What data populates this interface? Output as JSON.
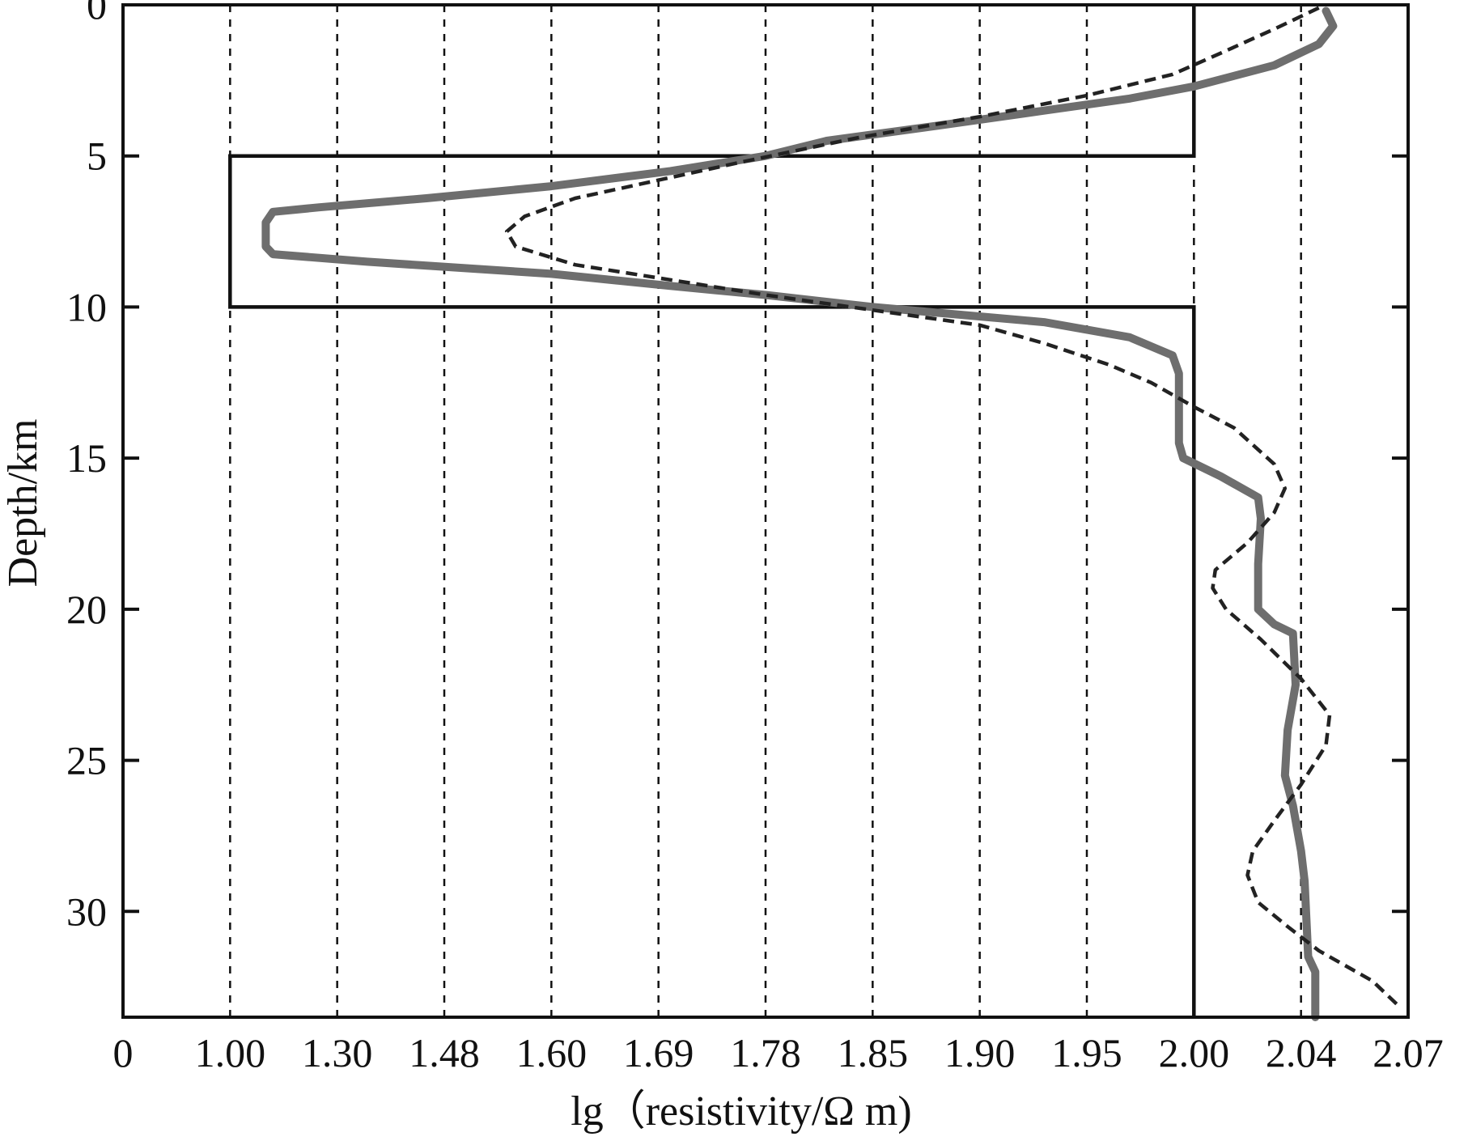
{
  "chart_data": {
    "type": "line",
    "xlabel": "lg（resistivity/Ω m)",
    "ylabel": "Depth/km",
    "x_tick_labels": [
      "0",
      "1.00",
      "1.30",
      "1.48",
      "1.60",
      "1.69",
      "1.78",
      "1.85",
      "1.90",
      "1.95",
      "2.00",
      "2.04",
      "2.07"
    ],
    "y_ticks": [
      0,
      5,
      10,
      15,
      20,
      25,
      30
    ],
    "y_tick_labels": [
      "0",
      "5",
      "10",
      "15",
      "20",
      "25",
      "30"
    ],
    "ylim": [
      0,
      33.5
    ],
    "y_inverted": true,
    "grid": "vertical dashed lines at each x tick",
    "series": [
      {
        "style": "solid-black-thin",
        "color": "#111111",
        "points": [
          [
            2.0,
            0
          ],
          [
            2.0,
            5
          ],
          [
            1.0,
            5
          ],
          [
            1.0,
            10
          ],
          [
            2.0,
            10
          ],
          [
            2.0,
            33.5
          ]
        ]
      },
      {
        "style": "solid-gray-thick",
        "color": "#6e6e6e",
        "points": [
          [
            2.047,
            0.2
          ],
          [
            2.049,
            0.7
          ],
          [
            2.045,
            1.3
          ],
          [
            2.03,
            2.0
          ],
          [
            2.0,
            2.7
          ],
          [
            1.97,
            3.1
          ],
          [
            1.93,
            3.5
          ],
          [
            1.88,
            4.0
          ],
          [
            1.82,
            4.5
          ],
          [
            1.78,
            5.0
          ],
          [
            1.7,
            5.5
          ],
          [
            1.6,
            6.0
          ],
          [
            1.45,
            6.4
          ],
          [
            1.25,
            6.7
          ],
          [
            1.12,
            6.85
          ],
          [
            1.1,
            7.2
          ],
          [
            1.1,
            8.0
          ],
          [
            1.12,
            8.25
          ],
          [
            1.35,
            8.5
          ],
          [
            1.6,
            8.9
          ],
          [
            1.7,
            9.3
          ],
          [
            1.78,
            9.6
          ],
          [
            1.85,
            10.0
          ],
          [
            1.93,
            10.5
          ],
          [
            1.97,
            11.0
          ],
          [
            1.99,
            11.6
          ],
          [
            1.993,
            12.2
          ],
          [
            1.993,
            14.5
          ],
          [
            1.995,
            15.0
          ],
          [
            2.01,
            15.6
          ],
          [
            2.024,
            16.3
          ],
          [
            2.025,
            17.0
          ],
          [
            2.024,
            18.5
          ],
          [
            2.024,
            20.0
          ],
          [
            2.03,
            20.5
          ],
          [
            2.037,
            20.8
          ],
          [
            2.038,
            22.5
          ],
          [
            2.035,
            24.0
          ],
          [
            2.034,
            25.5
          ],
          [
            2.037,
            26.5
          ],
          [
            2.04,
            28.0
          ],
          [
            2.041,
            29.0
          ],
          [
            2.042,
            31.5
          ],
          [
            2.044,
            32.0
          ],
          [
            2.044,
            33.5
          ]
        ]
      },
      {
        "style": "dashed-black",
        "color": "#222222",
        "points": [
          [
            2.045,
            0.1
          ],
          [
            2.03,
            0.8
          ],
          [
            2.01,
            1.6
          ],
          [
            1.99,
            2.3
          ],
          [
            1.95,
            3.0
          ],
          [
            1.9,
            3.7
          ],
          [
            1.84,
            4.4
          ],
          [
            1.76,
            5.2
          ],
          [
            1.69,
            5.8
          ],
          [
            1.62,
            6.4
          ],
          [
            1.57,
            7.0
          ],
          [
            1.55,
            7.5
          ],
          [
            1.56,
            8.0
          ],
          [
            1.62,
            8.6
          ],
          [
            1.7,
            9.1
          ],
          [
            1.78,
            9.6
          ],
          [
            1.85,
            10.1
          ],
          [
            1.9,
            10.6
          ],
          [
            1.93,
            11.2
          ],
          [
            1.96,
            11.9
          ],
          [
            1.98,
            12.5
          ],
          [
            2.0,
            13.3
          ],
          [
            2.015,
            14.0
          ],
          [
            2.03,
            15.2
          ],
          [
            2.034,
            16.0
          ],
          [
            2.03,
            16.8
          ],
          [
            2.02,
            17.8
          ],
          [
            2.008,
            18.7
          ],
          [
            2.007,
            19.3
          ],
          [
            2.012,
            20.0
          ],
          [
            2.025,
            21.0
          ],
          [
            2.04,
            22.3
          ],
          [
            2.048,
            23.5
          ],
          [
            2.047,
            24.5
          ],
          [
            2.04,
            25.8
          ],
          [
            2.03,
            27.0
          ],
          [
            2.022,
            28.0
          ],
          [
            2.02,
            28.8
          ],
          [
            2.024,
            29.7
          ],
          [
            2.035,
            30.5
          ],
          [
            2.045,
            31.3
          ],
          [
            2.06,
            32.3
          ],
          [
            2.068,
            33.2
          ]
        ]
      }
    ]
  }
}
